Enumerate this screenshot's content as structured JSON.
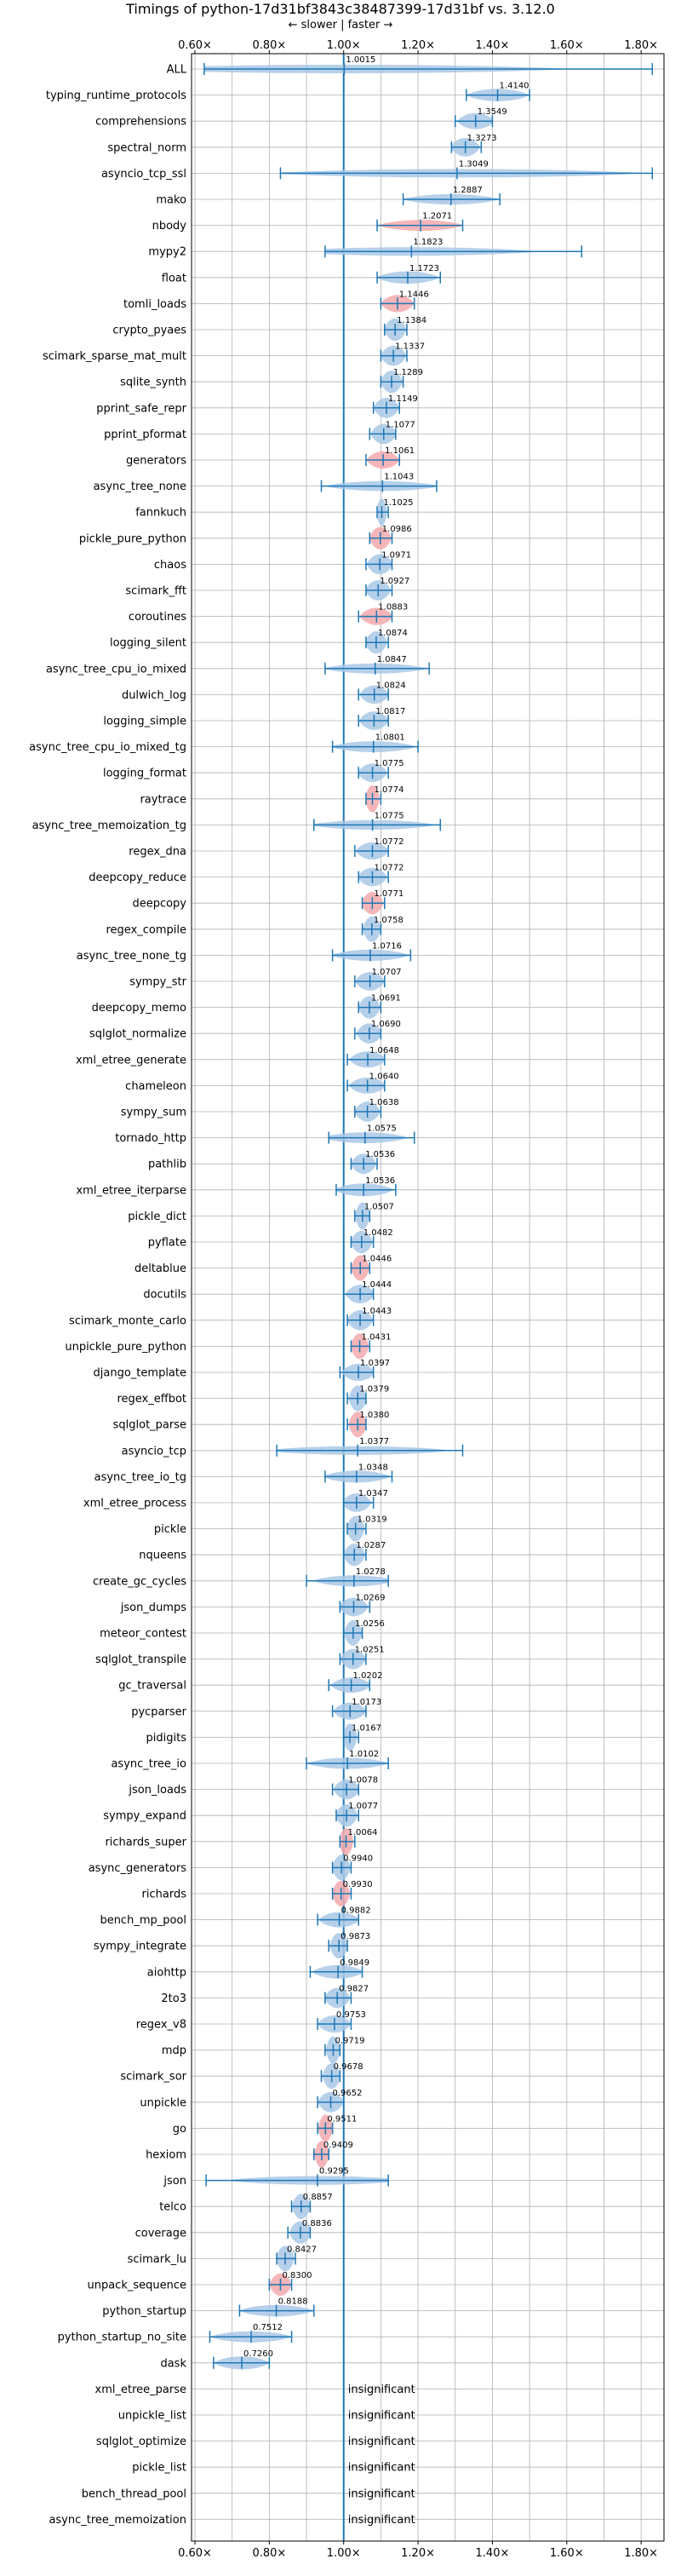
{
  "chart_data": {
    "type": "violin",
    "title": "Timings of python-17d31bf3843c38487399-17d31bf vs. 3.12.0",
    "direction_label": "← slower | faster →",
    "xlim": [
      0.6,
      1.85
    ],
    "xticks": [
      0.6,
      0.8,
      1.0,
      1.2,
      1.4,
      1.6,
      1.8
    ],
    "xtick_labels": [
      "0.60×",
      "0.80×",
      "1.00×",
      "1.20×",
      "1.40×",
      "1.60×",
      "1.80×"
    ],
    "grid": true,
    "reference_line": 1.0,
    "insignificant_label": "insignificant",
    "benchmarks": [
      {
        "name": "ALL",
        "value": 1.0015,
        "label": "1.0015",
        "min": 0.625,
        "max": 1.83,
        "color": "blue"
      },
      {
        "name": "typing_runtime_protocols",
        "value": 1.414,
        "label": "1.4140",
        "min": 1.33,
        "max": 1.5,
        "color": "blue"
      },
      {
        "name": "comprehensions",
        "value": 1.3549,
        "label": "1.3549",
        "min": 1.3,
        "max": 1.4,
        "color": "blue"
      },
      {
        "name": "spectral_norm",
        "value": 1.3273,
        "label": "1.3273",
        "min": 1.29,
        "max": 1.37,
        "color": "blue"
      },
      {
        "name": "asyncio_tcp_ssl",
        "value": 1.3049,
        "label": "1.3049",
        "min": 0.83,
        "max": 1.83,
        "color": "blue"
      },
      {
        "name": "mako",
        "value": 1.2887,
        "label": "1.2887",
        "min": 1.16,
        "max": 1.42,
        "color": "blue"
      },
      {
        "name": "nbody",
        "value": 1.2071,
        "label": "1.2071",
        "min": 1.09,
        "max": 1.32,
        "color": "red"
      },
      {
        "name": "mypy2",
        "value": 1.1823,
        "label": "1.1823",
        "min": 0.95,
        "max": 1.64,
        "color": "blue"
      },
      {
        "name": "float",
        "value": 1.1723,
        "label": "1.1723",
        "min": 1.09,
        "max": 1.26,
        "color": "blue"
      },
      {
        "name": "tomli_loads",
        "value": 1.1446,
        "label": "1.1446",
        "min": 1.1,
        "max": 1.19,
        "color": "red"
      },
      {
        "name": "crypto_pyaes",
        "value": 1.1384,
        "label": "1.1384",
        "min": 1.11,
        "max": 1.17,
        "color": "blue"
      },
      {
        "name": "scimark_sparse_mat_mult",
        "value": 1.1337,
        "label": "1.1337",
        "min": 1.1,
        "max": 1.17,
        "color": "blue"
      },
      {
        "name": "sqlite_synth",
        "value": 1.1289,
        "label": "1.1289",
        "min": 1.1,
        "max": 1.16,
        "color": "blue"
      },
      {
        "name": "pprint_safe_repr",
        "value": 1.1149,
        "label": "1.1149",
        "min": 1.08,
        "max": 1.15,
        "color": "blue"
      },
      {
        "name": "pprint_pformat",
        "value": 1.1077,
        "label": "1.1077",
        "min": 1.07,
        "max": 1.14,
        "color": "blue"
      },
      {
        "name": "generators",
        "value": 1.1061,
        "label": "1.1061",
        "min": 1.06,
        "max": 1.15,
        "color": "red"
      },
      {
        "name": "async_tree_none",
        "value": 1.1043,
        "label": "1.1043",
        "min": 0.94,
        "max": 1.25,
        "color": "blue"
      },
      {
        "name": "fannkuch",
        "value": 1.1025,
        "label": "1.1025",
        "min": 1.09,
        "max": 1.12,
        "color": "blue"
      },
      {
        "name": "pickle_pure_python",
        "value": 1.0986,
        "label": "1.0986",
        "min": 1.07,
        "max": 1.13,
        "color": "red"
      },
      {
        "name": "chaos",
        "value": 1.0971,
        "label": "1.0971",
        "min": 1.06,
        "max": 1.13,
        "color": "blue"
      },
      {
        "name": "scimark_fft",
        "value": 1.0927,
        "label": "1.0927",
        "min": 1.06,
        "max": 1.13,
        "color": "blue"
      },
      {
        "name": "coroutines",
        "value": 1.0883,
        "label": "1.0883",
        "min": 1.04,
        "max": 1.13,
        "color": "red"
      },
      {
        "name": "logging_silent",
        "value": 1.0874,
        "label": "1.0874",
        "min": 1.06,
        "max": 1.12,
        "color": "blue"
      },
      {
        "name": "async_tree_cpu_io_mixed",
        "value": 1.0847,
        "label": "1.0847",
        "min": 0.95,
        "max": 1.23,
        "color": "blue"
      },
      {
        "name": "dulwich_log",
        "value": 1.0824,
        "label": "1.0824",
        "min": 1.04,
        "max": 1.12,
        "color": "blue"
      },
      {
        "name": "logging_simple",
        "value": 1.0817,
        "label": "1.0817",
        "min": 1.04,
        "max": 1.12,
        "color": "blue"
      },
      {
        "name": "async_tree_cpu_io_mixed_tg",
        "value": 1.0801,
        "label": "1.0801",
        "min": 0.97,
        "max": 1.2,
        "color": "blue"
      },
      {
        "name": "logging_format",
        "value": 1.0775,
        "label": "1.0775",
        "min": 1.04,
        "max": 1.12,
        "color": "blue"
      },
      {
        "name": "raytrace",
        "value": 1.0774,
        "label": "1.0774",
        "min": 1.06,
        "max": 1.1,
        "color": "red"
      },
      {
        "name": "async_tree_memoization_tg",
        "value": 1.0775,
        "label": "1.0775",
        "min": 0.92,
        "max": 1.26,
        "color": "blue"
      },
      {
        "name": "regex_dna",
        "value": 1.0772,
        "label": "1.0772",
        "min": 1.03,
        "max": 1.12,
        "color": "blue"
      },
      {
        "name": "deepcopy_reduce",
        "value": 1.0772,
        "label": "1.0772",
        "min": 1.04,
        "max": 1.12,
        "color": "blue"
      },
      {
        "name": "deepcopy",
        "value": 1.0771,
        "label": "1.0771",
        "min": 1.05,
        "max": 1.11,
        "color": "red"
      },
      {
        "name": "regex_compile",
        "value": 1.0758,
        "label": "1.0758",
        "min": 1.05,
        "max": 1.1,
        "color": "blue"
      },
      {
        "name": "async_tree_none_tg",
        "value": 1.0716,
        "label": "1.0716",
        "min": 0.97,
        "max": 1.18,
        "color": "blue"
      },
      {
        "name": "sympy_str",
        "value": 1.0707,
        "label": "1.0707",
        "min": 1.03,
        "max": 1.11,
        "color": "blue"
      },
      {
        "name": "deepcopy_memo",
        "value": 1.0691,
        "label": "1.0691",
        "min": 1.04,
        "max": 1.1,
        "color": "blue"
      },
      {
        "name": "sqlglot_normalize",
        "value": 1.069,
        "label": "1.0690",
        "min": 1.03,
        "max": 1.1,
        "color": "blue"
      },
      {
        "name": "xml_etree_generate",
        "value": 1.0648,
        "label": "1.0648",
        "min": 1.01,
        "max": 1.11,
        "color": "blue"
      },
      {
        "name": "chameleon",
        "value": 1.064,
        "label": "1.0640",
        "min": 1.01,
        "max": 1.11,
        "color": "blue"
      },
      {
        "name": "sympy_sum",
        "value": 1.0638,
        "label": "1.0638",
        "min": 1.03,
        "max": 1.1,
        "color": "blue"
      },
      {
        "name": "tornado_http",
        "value": 1.0575,
        "label": "1.0575",
        "min": 0.96,
        "max": 1.19,
        "color": "blue"
      },
      {
        "name": "pathlib",
        "value": 1.0536,
        "label": "1.0536",
        "min": 1.02,
        "max": 1.09,
        "color": "blue"
      },
      {
        "name": "xml_etree_iterparse",
        "value": 1.0536,
        "label": "1.0536",
        "min": 0.98,
        "max": 1.14,
        "color": "blue"
      },
      {
        "name": "pickle_dict",
        "value": 1.0507,
        "label": "1.0507",
        "min": 1.03,
        "max": 1.07,
        "color": "blue"
      },
      {
        "name": "pyflate",
        "value": 1.0482,
        "label": "1.0482",
        "min": 1.02,
        "max": 1.08,
        "color": "blue"
      },
      {
        "name": "deltablue",
        "value": 1.0446,
        "label": "1.0446",
        "min": 1.02,
        "max": 1.07,
        "color": "red"
      },
      {
        "name": "docutils",
        "value": 1.0444,
        "label": "1.0444",
        "min": 1.0,
        "max": 1.08,
        "color": "blue"
      },
      {
        "name": "scimark_monte_carlo",
        "value": 1.0443,
        "label": "1.0443",
        "min": 1.01,
        "max": 1.08,
        "color": "blue"
      },
      {
        "name": "unpickle_pure_python",
        "value": 1.0431,
        "label": "1.0431",
        "min": 1.02,
        "max": 1.07,
        "color": "red"
      },
      {
        "name": "django_template",
        "value": 1.0397,
        "label": "1.0397",
        "min": 0.99,
        "max": 1.08,
        "color": "blue"
      },
      {
        "name": "regex_effbot",
        "value": 1.0379,
        "label": "1.0379",
        "min": 1.01,
        "max": 1.06,
        "color": "blue"
      },
      {
        "name": "sqlglot_parse",
        "value": 1.038,
        "label": "1.0380",
        "min": 1.01,
        "max": 1.06,
        "color": "red"
      },
      {
        "name": "asyncio_tcp",
        "value": 1.0377,
        "label": "1.0377",
        "min": 0.82,
        "max": 1.32,
        "color": "blue"
      },
      {
        "name": "async_tree_io_tg",
        "value": 1.0348,
        "label": "1.0348",
        "min": 0.95,
        "max": 1.13,
        "color": "blue"
      },
      {
        "name": "xml_etree_process",
        "value": 1.0347,
        "label": "1.0347",
        "min": 1.0,
        "max": 1.08,
        "color": "blue"
      },
      {
        "name": "pickle",
        "value": 1.0319,
        "label": "1.0319",
        "min": 1.01,
        "max": 1.06,
        "color": "blue"
      },
      {
        "name": "nqueens",
        "value": 1.0287,
        "label": "1.0287",
        "min": 1.0,
        "max": 1.06,
        "color": "blue"
      },
      {
        "name": "create_gc_cycles",
        "value": 1.0278,
        "label": "1.0278",
        "min": 0.9,
        "max": 1.12,
        "color": "blue"
      },
      {
        "name": "json_dumps",
        "value": 1.0269,
        "label": "1.0269",
        "min": 0.99,
        "max": 1.07,
        "color": "blue"
      },
      {
        "name": "meteor_contest",
        "value": 1.0256,
        "label": "1.0256",
        "min": 1.0,
        "max": 1.05,
        "color": "blue"
      },
      {
        "name": "sqlglot_transpile",
        "value": 1.0251,
        "label": "1.0251",
        "min": 0.99,
        "max": 1.06,
        "color": "blue"
      },
      {
        "name": "gc_traversal",
        "value": 1.0202,
        "label": "1.0202",
        "min": 0.96,
        "max": 1.07,
        "color": "blue"
      },
      {
        "name": "pycparser",
        "value": 1.0173,
        "label": "1.0173",
        "min": 0.97,
        "max": 1.06,
        "color": "blue"
      },
      {
        "name": "pidigits",
        "value": 1.0167,
        "label": "1.0167",
        "min": 1.0,
        "max": 1.04,
        "color": "blue"
      },
      {
        "name": "async_tree_io",
        "value": 1.0102,
        "label": "1.0102",
        "min": 0.9,
        "max": 1.12,
        "color": "blue"
      },
      {
        "name": "json_loads",
        "value": 1.0078,
        "label": "1.0078",
        "min": 0.97,
        "max": 1.04,
        "color": "blue"
      },
      {
        "name": "sympy_expand",
        "value": 1.0077,
        "label": "1.0077",
        "min": 0.98,
        "max": 1.04,
        "color": "blue"
      },
      {
        "name": "richards_super",
        "value": 1.0064,
        "label": "1.0064",
        "min": 0.99,
        "max": 1.03,
        "color": "red"
      },
      {
        "name": "async_generators",
        "value": 0.994,
        "label": "0.9940",
        "min": 0.97,
        "max": 1.02,
        "color": "blue"
      },
      {
        "name": "richards",
        "value": 0.993,
        "label": "0.9930",
        "min": 0.97,
        "max": 1.02,
        "color": "red"
      },
      {
        "name": "bench_mp_pool",
        "value": 0.9882,
        "label": "0.9882",
        "min": 0.93,
        "max": 1.04,
        "color": "blue"
      },
      {
        "name": "sympy_integrate",
        "value": 0.9873,
        "label": "0.9873",
        "min": 0.96,
        "max": 1.01,
        "color": "blue"
      },
      {
        "name": "aiohttp",
        "value": 0.9849,
        "label": "0.9849",
        "min": 0.91,
        "max": 1.05,
        "color": "blue"
      },
      {
        "name": "2to3",
        "value": 0.9827,
        "label": "0.9827",
        "min": 0.95,
        "max": 1.02,
        "color": "blue"
      },
      {
        "name": "regex_v8",
        "value": 0.9753,
        "label": "0.9753",
        "min": 0.93,
        "max": 1.02,
        "color": "blue"
      },
      {
        "name": "mdp",
        "value": 0.9719,
        "label": "0.9719",
        "min": 0.95,
        "max": 0.99,
        "color": "blue"
      },
      {
        "name": "scimark_sor",
        "value": 0.9678,
        "label": "0.9678",
        "min": 0.94,
        "max": 0.99,
        "color": "blue"
      },
      {
        "name": "unpickle",
        "value": 0.9652,
        "label": "0.9652",
        "min": 0.93,
        "max": 1.0,
        "color": "blue"
      },
      {
        "name": "go",
        "value": 0.9511,
        "label": "0.9511",
        "min": 0.93,
        "max": 0.97,
        "color": "red"
      },
      {
        "name": "hexiom",
        "value": 0.9409,
        "label": "0.9409",
        "min": 0.92,
        "max": 0.96,
        "color": "red"
      },
      {
        "name": "json",
        "value": 0.9295,
        "label": "0.9295",
        "min": 0.63,
        "max": 1.12,
        "color": "blue"
      },
      {
        "name": "telco",
        "value": 0.8857,
        "label": "0.8857",
        "min": 0.86,
        "max": 0.91,
        "color": "blue"
      },
      {
        "name": "coverage",
        "value": 0.8836,
        "label": "0.8836",
        "min": 0.85,
        "max": 0.91,
        "color": "blue"
      },
      {
        "name": "scimark_lu",
        "value": 0.8427,
        "label": "0.8427",
        "min": 0.82,
        "max": 0.87,
        "color": "blue"
      },
      {
        "name": "unpack_sequence",
        "value": 0.83,
        "label": "0.8300",
        "min": 0.8,
        "max": 0.86,
        "color": "red"
      },
      {
        "name": "python_startup",
        "value": 0.8188,
        "label": "0.8188",
        "min": 0.72,
        "max": 0.92,
        "color": "blue"
      },
      {
        "name": "python_startup_no_site",
        "value": 0.7512,
        "label": "0.7512",
        "min": 0.64,
        "max": 0.86,
        "color": "blue"
      },
      {
        "name": "dask",
        "value": 0.726,
        "label": "0.7260",
        "min": 0.65,
        "max": 0.8,
        "color": "blue"
      },
      {
        "name": "xml_etree_parse",
        "value": null,
        "label": "insignificant",
        "min": null,
        "max": null,
        "color": "blue"
      },
      {
        "name": "unpickle_list",
        "value": null,
        "label": "insignificant",
        "min": null,
        "max": null,
        "color": "blue"
      },
      {
        "name": "sqlglot_optimize",
        "value": null,
        "label": "insignificant",
        "min": null,
        "max": null,
        "color": "blue"
      },
      {
        "name": "pickle_list",
        "value": null,
        "label": "insignificant",
        "min": null,
        "max": null,
        "color": "blue"
      },
      {
        "name": "bench_thread_pool",
        "value": null,
        "label": "insignificant",
        "min": null,
        "max": null,
        "color": "blue"
      },
      {
        "name": "async_tree_memoization",
        "value": null,
        "label": "insignificant",
        "min": null,
        "max": null,
        "color": "blue"
      }
    ],
    "colors": {
      "blue_fill": "#a9c8e6",
      "red_fill": "#f3a9ad",
      "line": "#1f77b4",
      "grid": "#b0b0b0"
    }
  }
}
